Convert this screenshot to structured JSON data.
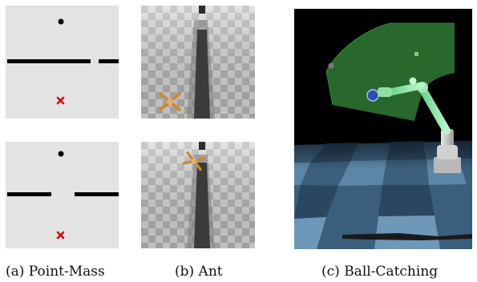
{
  "figure": {
    "captions": {
      "a": "(a) Point-Mass",
      "b": "(b) Ant",
      "c": "(c) Ball-Catching"
    }
  },
  "colors": {
    "point_mass_bg": "#e3e3e3",
    "wall": "#000000",
    "goal_marker": "#e00000",
    "ant_floor_light": "#dcdcdc",
    "ant_floor_dark": "#a8a8a8",
    "ball_catching_bg": "#000000",
    "workspace_green": "#2f7a35",
    "ball_blue": "#2d4fb0",
    "arm_green": "#86e3a0",
    "floor_blue": "#456c8d"
  },
  "icons": {
    "goal": "red-x-icon",
    "agent": "black-dot-icon"
  }
}
